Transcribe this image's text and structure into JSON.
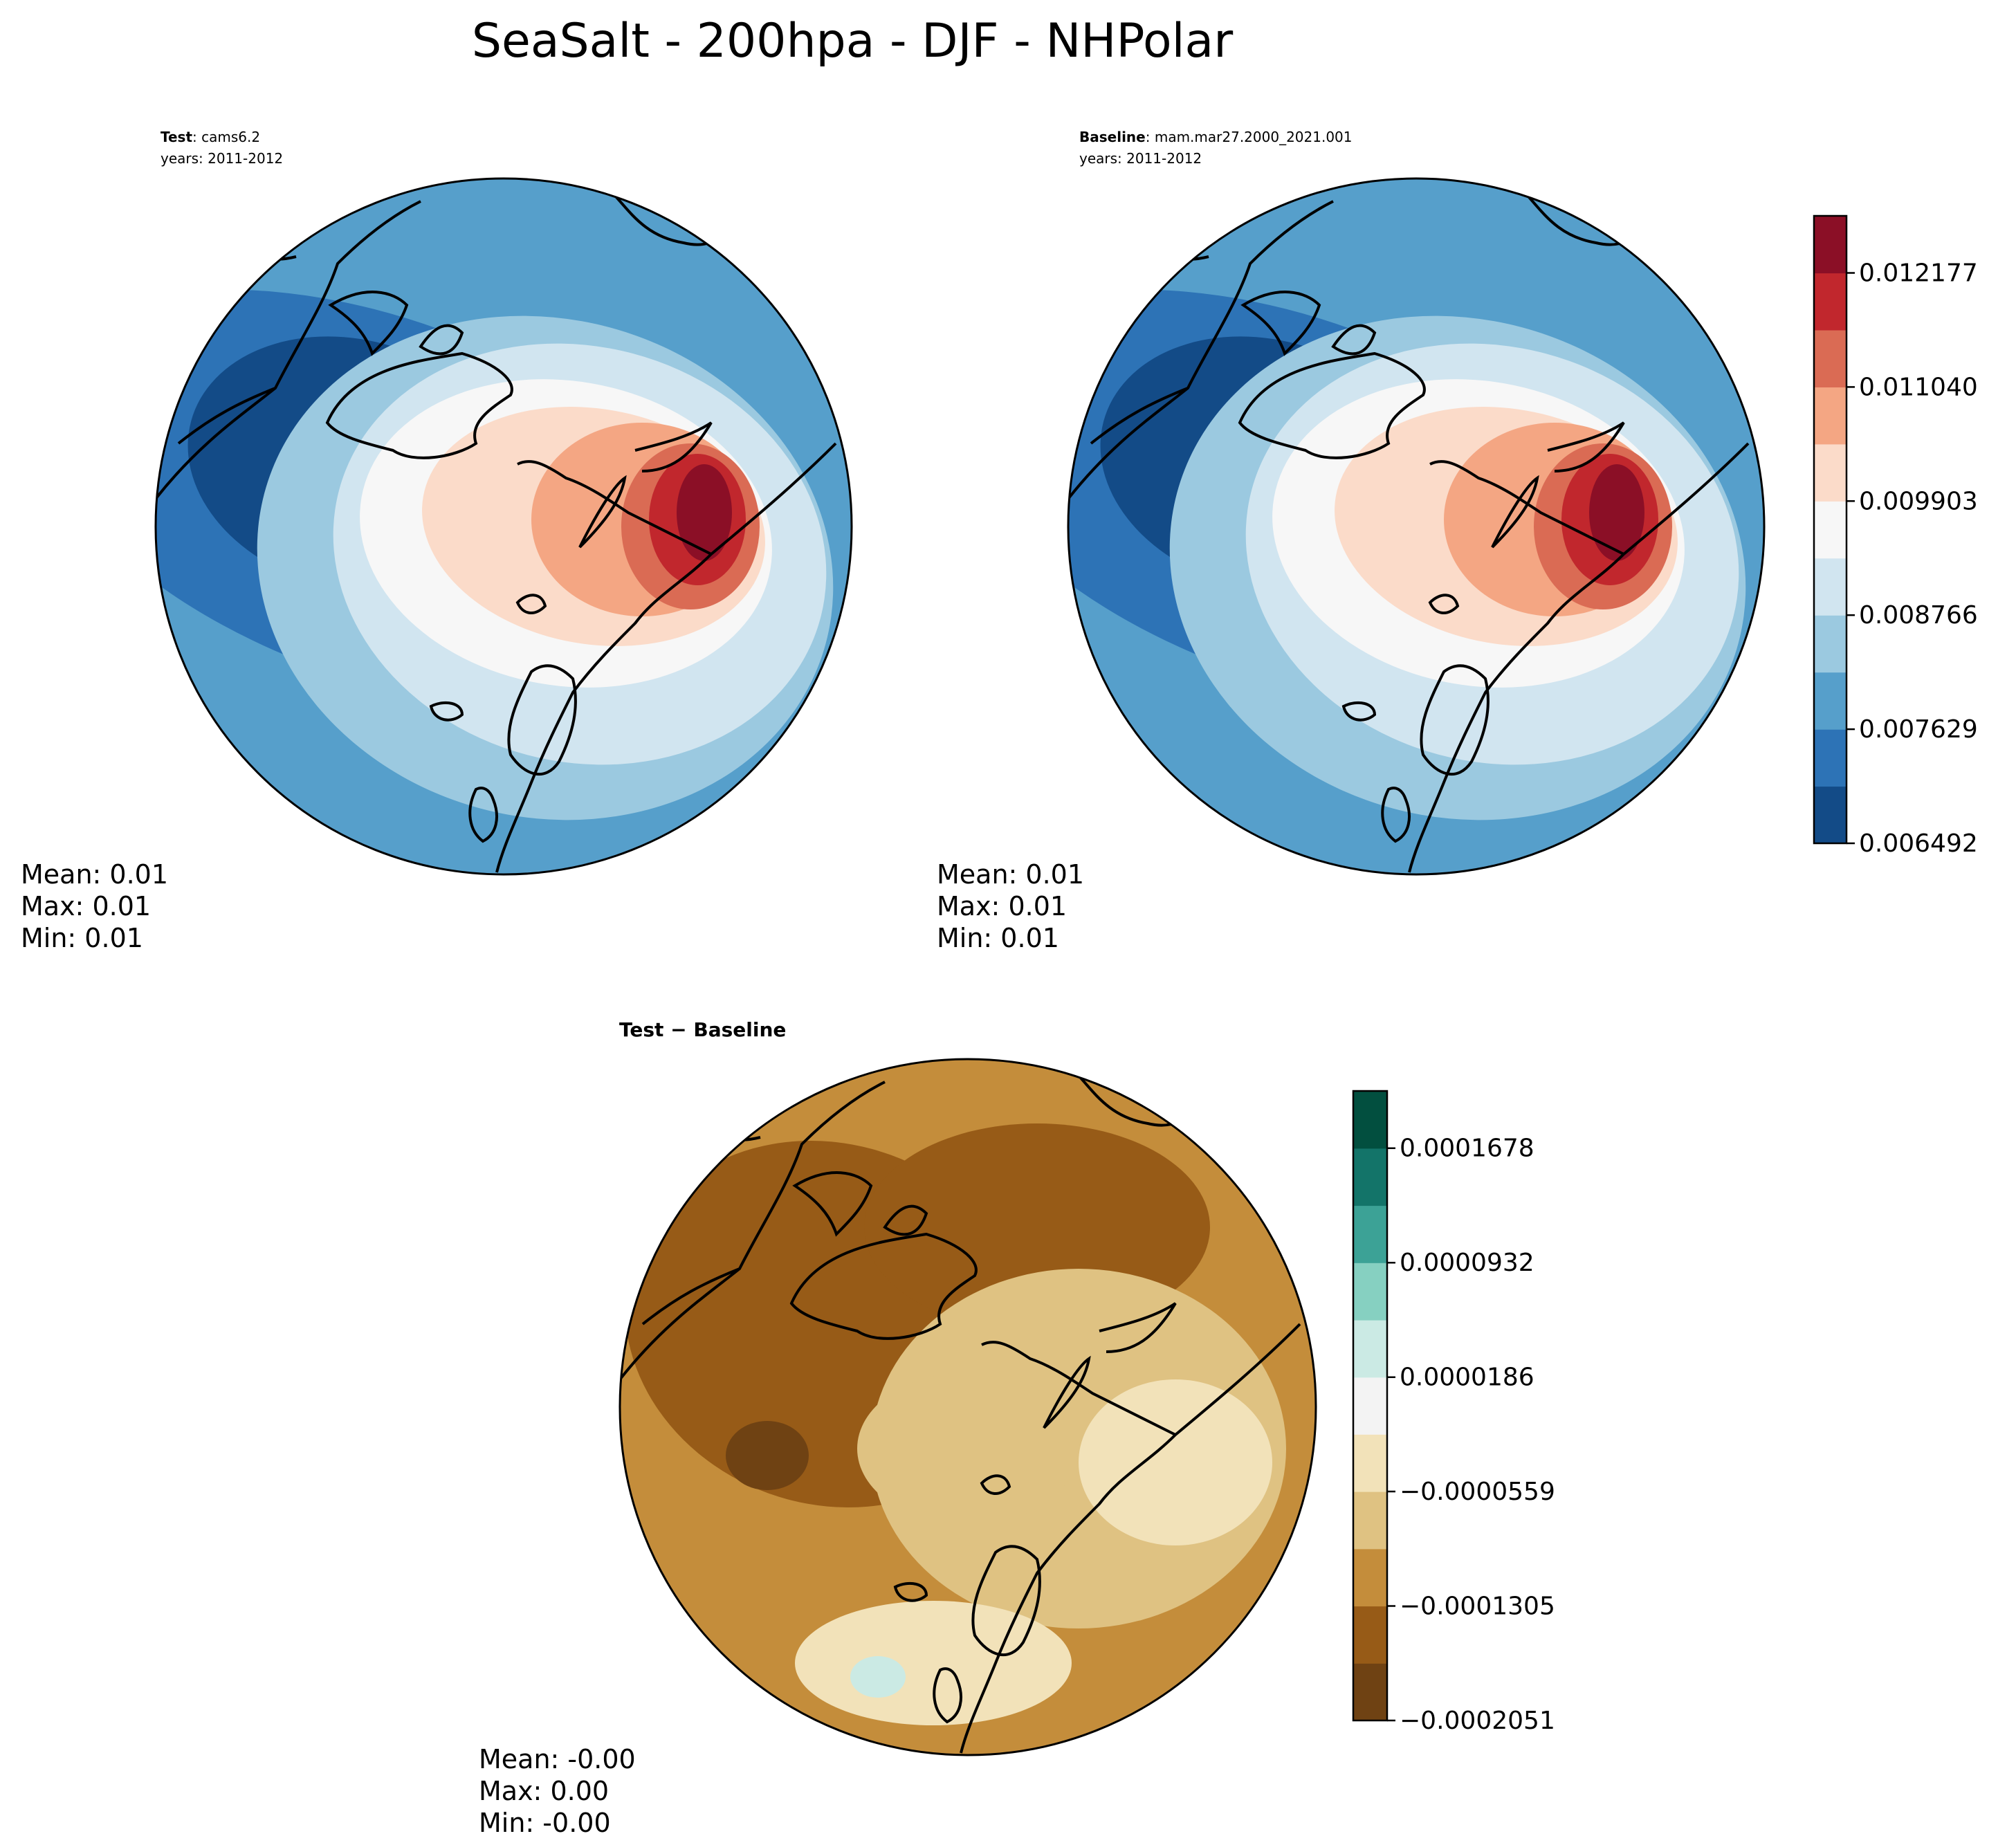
{
  "title": "SeaSalt - 200hpa - DJF - NHPolar",
  "colors": {
    "seq": [
      "#134b87",
      "#2d73b6",
      "#569fcb",
      "#9bc9e0",
      "#d1e5f0",
      "#f7f7f7",
      "#fbdbc9",
      "#f4a683",
      "#da6b54",
      "#c1272d",
      "#8b0f26"
    ],
    "diff": [
      "#6f4213",
      "#975b17",
      "#c48d3b",
      "#dfc282",
      "#f2e2b9",
      "#f3f3f3",
      "#cbeae4",
      "#86d0c1",
      "#3ca296",
      "#137469",
      "#024f3f"
    ],
    "land_line": "#000000",
    "frame": "#000000"
  },
  "chart_data": [
    {
      "type": "heatmap",
      "name": "test",
      "label_bold": "Test",
      "label_rest": ": cams6.2",
      "years": "years: 2011-2012",
      "projection": "north-polar-stereographic",
      "stats": {
        "mean": "Mean:  0.01",
        "max": "Max:  0.01",
        "min": "Min:  0.01"
      },
      "hotspot": {
        "lat": 72,
        "lon": 90
      }
    },
    {
      "type": "heatmap",
      "name": "baseline",
      "label_bold": "Baseline",
      "label_rest": ": mam.mar27.2000_2021.001",
      "years": "years: 2011-2012",
      "projection": "north-polar-stereographic",
      "stats": {
        "mean": "Mean:  0.01",
        "max": "Max:  0.01",
        "min": "Min:  0.01"
      },
      "hotspot": {
        "lat": 72,
        "lon": 90
      },
      "colorbar": {
        "levels": [
          0.006492,
          0.007061,
          0.007629,
          0.008198,
          0.008766,
          0.009335,
          0.009903,
          0.010472,
          0.01104,
          0.011609,
          0.012177,
          0.012746
        ],
        "tick_labels": [
          "0.012177",
          "0.011040",
          "0.009903",
          "0.008766",
          "0.007629",
          "0.006492"
        ],
        "tick_values": [
          0.012177,
          0.01104,
          0.009903,
          0.008766,
          0.007629,
          0.006492
        ]
      }
    },
    {
      "type": "heatmap",
      "name": "difference",
      "title": "Test − Baseline",
      "projection": "north-polar-stereographic",
      "stats": {
        "mean": "Mean: -0.00",
        "max": "Max:  0.00",
        "min": "Min: -0.00"
      },
      "colorbar": {
        "levels": [
          -0.0002051,
          -0.0001678,
          -0.0001305,
          -9.32e-05,
          -5.59e-05,
          -1.86e-05,
          1.86e-05,
          5.59e-05,
          9.32e-05,
          0.0001305,
          0.0001678,
          0.0002051
        ],
        "tick_labels": [
          "0.0001678",
          "0.0000932",
          "0.0000186",
          "−0.0000559",
          "−0.0001305",
          "−0.0002051"
        ],
        "tick_values": [
          0.0001678,
          9.32e-05,
          1.86e-05,
          -5.59e-05,
          -0.0001305,
          -0.0002051
        ]
      }
    }
  ]
}
